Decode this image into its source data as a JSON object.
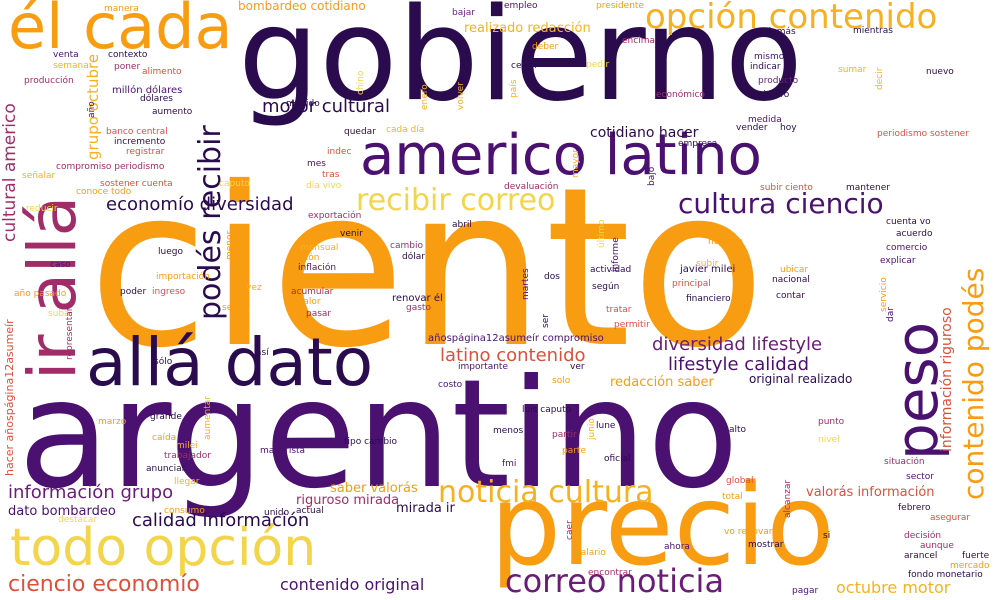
{
  "palette": {
    "deep_purple": "#2a0c4e",
    "purple": "#4b1170",
    "plum": "#6a1d76",
    "magenta": "#a12d68",
    "red_orange": "#d8523c",
    "orange": "#f89c12",
    "amber": "#f6b121",
    "yellow": "#f3d54b"
  },
  "words": [
    {
      "text": "ciento",
      "color": "#f89c12"
    },
    {
      "text": "argentino",
      "color": "#4b1170"
    },
    {
      "text": "gobierno",
      "color": "#2a0c4e"
    },
    {
      "text": "precio",
      "color": "#f89c12"
    },
    {
      "text": "americo latino",
      "color": "#4b1170"
    },
    {
      "text": "él cada",
      "color": "#f89c12"
    },
    {
      "text": "allá dato",
      "color": "#2a0c4e"
    },
    {
      "text": "todo opción",
      "color": "#f3d54b"
    },
    {
      "text": "ir allá",
      "color": "#a12d68"
    },
    {
      "text": "opción contenido",
      "color": "#f6b121"
    },
    {
      "text": "peso",
      "color": "#4b1170"
    },
    {
      "text": "noticia cultura",
      "color": "#f6b121"
    },
    {
      "text": "correo noticia",
      "color": "#6a1d76"
    },
    {
      "text": "recibir correo",
      "color": "#f3d54b"
    },
    {
      "text": "cultura ciencio",
      "color": "#4b1170"
    },
    {
      "text": "contenido podés",
      "color": "#f89c12"
    },
    {
      "text": "podés recibir",
      "color": "#2a0c4e"
    },
    {
      "text": "ciencio economío",
      "color": "#d8523c"
    },
    {
      "text": "cultural americo",
      "color": "#a12d68"
    },
    {
      "text": "diversidad lifestyle",
      "color": "#6a1d76"
    },
    {
      "text": "economío diversidad",
      "color": "#2a0c4e"
    },
    {
      "text": "motor cultural",
      "color": "#2a0c4e"
    },
    {
      "text": "latino contenido",
      "color": "#d8523c"
    },
    {
      "text": "lifestyle calidad",
      "color": "#4b1170"
    },
    {
      "text": "información grupo",
      "color": "#6a1d76"
    },
    {
      "text": "calidad información",
      "color": "#2a0c4e"
    },
    {
      "text": "contenido original",
      "color": "#4b1170"
    },
    {
      "text": "octubre motor",
      "color": "#f6b121"
    },
    {
      "text": "grupo octubre",
      "color": "#f6b121"
    },
    {
      "text": "información riguroso",
      "color": "#d8523c"
    },
    {
      "text": "cotidiano hacer",
      "color": "#2a0c4e"
    },
    {
      "text": "bombardeo cotidiano",
      "color": "#f89c12"
    },
    {
      "text": "realizado redacción",
      "color": "#f6b121"
    },
    {
      "text": "redacción saber",
      "color": "#f89c12"
    },
    {
      "text": "original realizado",
      "color": "#2a0c4e"
    },
    {
      "text": "saber valorás",
      "color": "#f89c12"
    },
    {
      "text": "riguroso mirada",
      "color": "#a12d68"
    },
    {
      "text": "valorás información",
      "color": "#d8523c"
    },
    {
      "text": "mirada ir",
      "color": "#2a0c4e"
    },
    {
      "text": "dato bombardeo",
      "color": "#4b1170"
    },
    {
      "text": "hacer añospágina12asumeír",
      "color": "#d8523c"
    },
    {
      "text": "añospágina12asumeír compromiso",
      "color": "#4b1170"
    },
    {
      "text": "compromiso periodismo",
      "color": "#a12d68"
    },
    {
      "text": "periodismo sostener",
      "color": "#d8523c"
    },
    {
      "text": "sostener cuenta",
      "color": "#d8523c"
    },
    {
      "text": "millón dólares",
      "color": "#4b1170"
    },
    {
      "text": "banco central",
      "color": "#d8523c"
    },
    {
      "text": "javier milei",
      "color": "#2a0c4e"
    },
    {
      "text": "luis caputo",
      "color": "#2a0c4e"
    },
    {
      "text": "año pasado",
      "color": "#f89c12"
    },
    {
      "text": "tipo cambio",
      "color": "#2a0c4e"
    },
    {
      "text": "fondo monetario",
      "color": "#2a0c4e"
    },
    {
      "text": "renovar él",
      "color": "#2a0c4e"
    },
    {
      "text": "cuenta vo",
      "color": "#2a0c4e"
    },
    {
      "text": "subir ciento",
      "color": "#d8523c"
    },
    {
      "text": "vo renovar",
      "color": "#f89c12"
    },
    {
      "text": "conoce todo",
      "color": "#f89c12"
    },
    {
      "text": "dólares",
      "color": "#2a0c4e"
    },
    {
      "text": "aumento",
      "color": "#2a0c4e"
    },
    {
      "text": "incremento",
      "color": "#2a0c4e"
    },
    {
      "text": "registrar",
      "color": "#d8523c"
    },
    {
      "text": "producción",
      "color": "#a12d68"
    },
    {
      "text": "alimento",
      "color": "#d8523c"
    },
    {
      "text": "contexto",
      "color": "#2a0c4e"
    },
    {
      "text": "poner",
      "color": "#a12d68"
    },
    {
      "text": "semana",
      "color": "#f6b121"
    },
    {
      "text": "venta",
      "color": "#4b1170"
    },
    {
      "text": "manera",
      "color": "#f89c12"
    },
    {
      "text": "medido",
      "color": "#2a0c4e"
    },
    {
      "text": "quedar",
      "color": "#2a0c4e"
    },
    {
      "text": "cada día",
      "color": "#f6b121"
    },
    {
      "text": "chino",
      "color": "#f3d54b"
    },
    {
      "text": "enero",
      "color": "#f6b121"
    },
    {
      "text": "volver",
      "color": "#f6b121"
    },
    {
      "text": "país",
      "color": "#f6b121"
    },
    {
      "text": "bajar",
      "color": "#6a1d76"
    },
    {
      "text": "empleo",
      "color": "#4b1170"
    },
    {
      "text": "deber",
      "color": "#f89c12"
    },
    {
      "text": "cerrar",
      "color": "#2a0c4e"
    },
    {
      "text": "pedir",
      "color": "#f3d54b"
    },
    {
      "text": "presidente",
      "color": "#f89c12"
    },
    {
      "text": "encima",
      "color": "#a12d68"
    },
    {
      "text": "además",
      "color": "#2a0c4e"
    },
    {
      "text": "mientras",
      "color": "#2a0c4e"
    },
    {
      "text": "mismo",
      "color": "#4b1170"
    },
    {
      "text": "indicar",
      "color": "#2a0c4e"
    },
    {
      "text": "sumar",
      "color": "#f6b121"
    },
    {
      "text": "decir",
      "color": "#f6b121"
    },
    {
      "text": "nuevo",
      "color": "#2a0c4e"
    },
    {
      "text": "producto",
      "color": "#6a1d76"
    },
    {
      "text": "primero",
      "color": "#2a0c4e"
    },
    {
      "text": "económico",
      "color": "#a12d68"
    },
    {
      "text": "medida",
      "color": "#4b1170"
    },
    {
      "text": "vender",
      "color": "#2a0c4e"
    },
    {
      "text": "hoy",
      "color": "#2a0c4e"
    },
    {
      "text": "empresa",
      "color": "#2a0c4e"
    },
    {
      "text": "mes",
      "color": "#4b1170"
    },
    {
      "text": "indec",
      "color": "#d8523c"
    },
    {
      "text": "tras",
      "color": "#d8523c"
    },
    {
      "text": "día vivo",
      "color": "#f3d54b"
    },
    {
      "text": "caputo",
      "color": "#f3d54b"
    },
    {
      "text": "exportación",
      "color": "#a12d68"
    },
    {
      "text": "devaluación",
      "color": "#a12d68"
    },
    {
      "text": "mayor",
      "color": "#f6b121"
    },
    {
      "text": "bajo",
      "color": "#4b1170"
    },
    {
      "text": "último",
      "color": "#f3d54b"
    },
    {
      "text": "informe",
      "color": "#4b1170"
    },
    {
      "text": "mantener",
      "color": "#2a0c4e"
    },
    {
      "text": "acuerdo",
      "color": "#2a0c4e"
    },
    {
      "text": "comercio",
      "color": "#4b1170"
    },
    {
      "text": "explicar",
      "color": "#4b1170"
    },
    {
      "text": "número",
      "color": "#f89c12"
    },
    {
      "text": "abril",
      "color": "#2a0c4e"
    },
    {
      "text": "venir",
      "color": "#2a0c4e"
    },
    {
      "text": "mensual",
      "color": "#f6b121"
    },
    {
      "text": "millón",
      "color": "#f89c12"
    },
    {
      "text": "inflación",
      "color": "#4b1170"
    },
    {
      "text": "cambio",
      "color": "#a12d68"
    },
    {
      "text": "dólar",
      "color": "#2a0c4e"
    },
    {
      "text": "luego",
      "color": "#2a0c4e"
    },
    {
      "text": "menor",
      "color": "#f89c12"
    },
    {
      "text": "caso",
      "color": "#4b1170"
    },
    {
      "text": "importación",
      "color": "#f89c12"
    },
    {
      "text": "alza",
      "color": "#f89c12"
    },
    {
      "text": "vez",
      "color": "#f6b121"
    },
    {
      "text": "acumular",
      "color": "#a12d68"
    },
    {
      "text": "valor",
      "color": "#f89c12"
    },
    {
      "text": "pasar",
      "color": "#a12d68"
    },
    {
      "text": "gasto",
      "color": "#a12d68"
    },
    {
      "text": "ubicar",
      "color": "#f89c12"
    },
    {
      "text": "nacional",
      "color": "#2a0c4e"
    },
    {
      "text": "principal",
      "color": "#d8523c"
    },
    {
      "text": "financiero",
      "color": "#2a0c4e"
    },
    {
      "text": "contar",
      "color": "#2a0c4e"
    },
    {
      "text": "subir",
      "color": "#f6b121"
    },
    {
      "text": "actividad",
      "color": "#2a0c4e"
    },
    {
      "text": "dos",
      "color": "#2a0c4e"
    },
    {
      "text": "según",
      "color": "#2a0c4e"
    },
    {
      "text": "martes",
      "color": "#4b1170"
    },
    {
      "text": "ser",
      "color": "#2a0c4e"
    },
    {
      "text": "tratar",
      "color": "#d8523c"
    },
    {
      "text": "permitir",
      "color": "#d8523c"
    },
    {
      "text": "poder",
      "color": "#2a0c4e"
    },
    {
      "text": "ingreso",
      "color": "#d8523c"
    },
    {
      "text": "seguir",
      "color": "#f89c12"
    },
    {
      "text": "suba",
      "color": "#f3d54b"
    },
    {
      "text": "representar",
      "color": "#a12d68"
    },
    {
      "text": "así",
      "color": "#2a0c4e"
    },
    {
      "text": "sólo",
      "color": "#2a0c4e"
    },
    {
      "text": "importante",
      "color": "#4b1170"
    },
    {
      "text": "ver",
      "color": "#2a0c4e"
    },
    {
      "text": "solo",
      "color": "#f89c12"
    },
    {
      "text": "costo",
      "color": "#4b1170"
    },
    {
      "text": "marzo",
      "color": "#f89c12"
    },
    {
      "text": "grande",
      "color": "#2a0c4e"
    },
    {
      "text": "aumentar",
      "color": "#f6b121"
    },
    {
      "text": "caída",
      "color": "#f89c12"
    },
    {
      "text": "milei",
      "color": "#f6b121"
    },
    {
      "text": "trabajador",
      "color": "#a12d68"
    },
    {
      "text": "anunciar",
      "color": "#2a0c4e"
    },
    {
      "text": "llegar",
      "color": "#f6b121"
    },
    {
      "text": "consumo",
      "color": "#f89c12"
    },
    {
      "text": "destacar",
      "color": "#f3d54b"
    },
    {
      "text": "unido",
      "color": "#2a0c4e"
    },
    {
      "text": "actual",
      "color": "#2a0c4e"
    },
    {
      "text": "mayorista",
      "color": "#4b1170"
    },
    {
      "text": "menos",
      "color": "#2a0c4e"
    },
    {
      "text": "fmi",
      "color": "#4b1170"
    },
    {
      "text": "partir",
      "color": "#a12d68"
    },
    {
      "text": "parte",
      "color": "#f89c12"
    },
    {
      "text": "lune",
      "color": "#2a0c4e"
    },
    {
      "text": "oficial",
      "color": "#2a0c4e"
    },
    {
      "text": "alto",
      "color": "#2a0c4e"
    },
    {
      "text": "punto",
      "color": "#a12d68"
    },
    {
      "text": "nivel",
      "color": "#f3d54b"
    },
    {
      "text": "global",
      "color": "#d8523c"
    },
    {
      "text": "total",
      "color": "#f89c12"
    },
    {
      "text": "alcanzar",
      "color": "#a12d68"
    },
    {
      "text": "situación",
      "color": "#a12d68"
    },
    {
      "text": "sector",
      "color": "#4b1170"
    },
    {
      "text": "febrero",
      "color": "#2a0c4e"
    },
    {
      "text": "asegurar",
      "color": "#d8523c"
    },
    {
      "text": "caer",
      "color": "#a12d68"
    },
    {
      "text": "salario",
      "color": "#f89c12"
    },
    {
      "text": "ahora",
      "color": "#4b1170"
    },
    {
      "text": "mostrar",
      "color": "#2a0c4e"
    },
    {
      "text": "si",
      "color": "#2a0c4e"
    },
    {
      "text": "decisión",
      "color": "#a12d68"
    },
    {
      "text": "aunque",
      "color": "#a12d68"
    },
    {
      "text": "arancel",
      "color": "#2a0c4e"
    },
    {
      "text": "fuerte",
      "color": "#2a0c4e"
    },
    {
      "text": "mercado",
      "color": "#f89c12"
    },
    {
      "text": "encontrar",
      "color": "#a12d68"
    },
    {
      "text": "pagar",
      "color": "#4b1170"
    },
    {
      "text": "servicio",
      "color": "#f89c12"
    },
    {
      "text": "dar",
      "color": "#4b1170"
    },
    {
      "text": "señalar",
      "color": "#f6b121"
    },
    {
      "text": "reducir",
      "color": "#f3d54b"
    },
    {
      "text": "año",
      "color": "#4b1170"
    },
    {
      "text": "junio",
      "color": "#f6b121"
    }
  ]
}
